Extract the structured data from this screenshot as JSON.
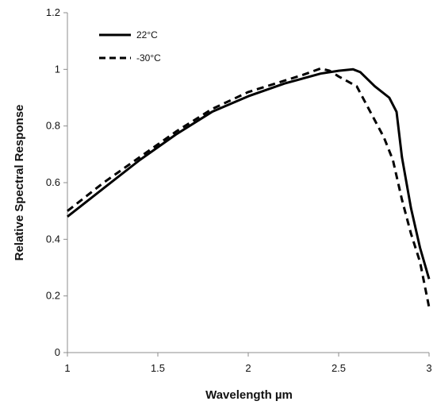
{
  "chart_data": {
    "type": "line",
    "xlabel": "Wavelength µm",
    "ylabel": "Relative Spectral Response",
    "xlim": [
      1,
      3
    ],
    "ylim": [
      0,
      1.2
    ],
    "x_ticks": [
      "1",
      "1.5",
      "2",
      "2.5",
      "3"
    ],
    "y_ticks": [
      "0",
      "0.2",
      "0.4",
      "0.6",
      "0.8",
      "1",
      "1.2"
    ],
    "grid": false,
    "legend_position": "top-left",
    "series": [
      {
        "name": "22°C",
        "line_style": "solid",
        "color": "#000000",
        "x": [
          1.0,
          1.2,
          1.4,
          1.6,
          1.8,
          2.0,
          2.2,
          2.4,
          2.5,
          2.58,
          2.62,
          2.7,
          2.78,
          2.82,
          2.85,
          2.9,
          2.95,
          3.0
        ],
        "y": [
          0.48,
          0.58,
          0.68,
          0.77,
          0.85,
          0.905,
          0.95,
          0.985,
          0.995,
          1.0,
          0.99,
          0.94,
          0.9,
          0.85,
          0.69,
          0.51,
          0.37,
          0.26
        ]
      },
      {
        "name": "-30°C",
        "line_style": "dashed",
        "color": "#000000",
        "x": [
          1.0,
          1.2,
          1.4,
          1.6,
          1.8,
          2.0,
          2.2,
          2.3,
          2.4,
          2.45,
          2.5,
          2.6,
          2.65,
          2.7,
          2.75,
          2.8,
          2.85,
          2.9,
          2.95,
          3.0
        ],
        "y": [
          0.5,
          0.6,
          0.69,
          0.78,
          0.86,
          0.92,
          0.96,
          0.98,
          1.003,
          0.995,
          0.975,
          0.94,
          0.88,
          0.82,
          0.76,
          0.68,
          0.54,
          0.42,
          0.32,
          0.16
        ]
      }
    ]
  }
}
